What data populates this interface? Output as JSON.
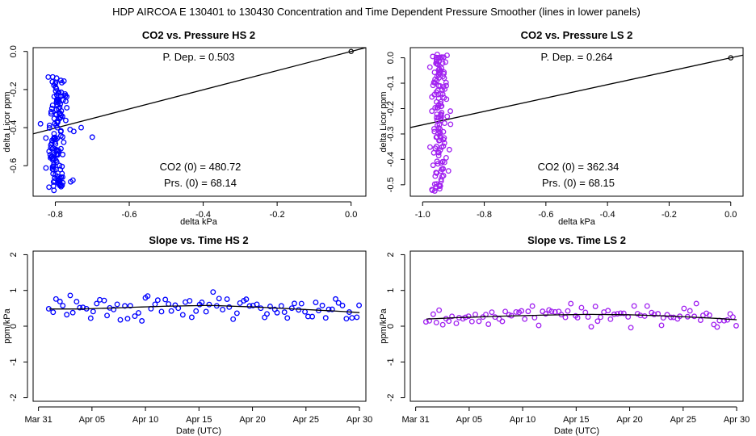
{
  "page_title": "HDP    AIRCOA E    130401 to 130430    Concentration and Time Dependent Pressure Smoother (lines in lower panels)",
  "colors": {
    "hs": "#0000ff",
    "ls": "#a020f0",
    "line": "#000000"
  },
  "chart_data": [
    {
      "id": "p1",
      "type": "scatter",
      "title": "CO2 vs. Pressure HS 2",
      "xlabel": "delta kPa",
      "ylabel": "delta Licor ppm",
      "xlim": [
        -0.86,
        0.04
      ],
      "ylim": [
        -0.76,
        0.02
      ],
      "xticks": [
        -0.8,
        -0.6,
        -0.4,
        -0.2,
        0.0
      ],
      "xtick_labels": [
        "-0.8",
        "-0.6",
        "-0.4",
        "-0.2",
        "0.0"
      ],
      "yticks": [
        0.0,
        -0.2,
        -0.4,
        -0.6
      ],
      "ytick_labels": [
        "0.0",
        "-0.2",
        "-0.4",
        "-0.6"
      ],
      "pdep_label": "P. Dep. =  0.503",
      "co2_label": "CO2 (0) =  480.72",
      "prs_label": "Prs. (0) =  68.14",
      "fit": {
        "slope": 0.503,
        "intercept": 0.0
      },
      "ref_point": [
        0.0,
        0.0
      ],
      "color": "#0000ff",
      "cluster": {
        "x_center": -0.795,
        "x_spread": 0.012,
        "y_min": -0.73,
        "y_max": -0.13,
        "n": 140,
        "seed": 11
      },
      "outliers": [
        [
          -0.7,
          -0.45
        ],
        [
          -0.73,
          -0.4
        ],
        [
          -0.76,
          -0.41
        ],
        [
          -0.75,
          -0.42
        ],
        [
          -0.84,
          -0.38
        ]
      ]
    },
    {
      "id": "p2",
      "type": "scatter",
      "title": "CO2 vs. Pressure LS 2",
      "xlabel": "delta kPa",
      "ylabel": "delta Licor ppm",
      "xlim": [
        -1.04,
        0.04
      ],
      "ylim": [
        -0.545,
        0.04
      ],
      "xticks": [
        -1.0,
        -0.8,
        -0.6,
        -0.4,
        -0.2,
        0.0
      ],
      "xtick_labels": [
        "-1.0",
        "-0.8",
        "-0.6",
        "-0.4",
        "-0.2",
        "0.0"
      ],
      "yticks": [
        0.0,
        -0.1,
        -0.2,
        -0.3,
        -0.4,
        -0.5
      ],
      "ytick_labels": [
        "0.0",
        "-0.1",
        "-0.2",
        "-0.3",
        "-0.4",
        "-0.5"
      ],
      "pdep_label": "P. Dep. =  0.264",
      "co2_label": "CO2 (0) =  362.34",
      "prs_label": "Prs. (0) =  68.15",
      "fit": {
        "slope": 0.264,
        "intercept": 0.0
      },
      "ref_point": [
        0.0,
        0.0
      ],
      "color": "#a020f0",
      "cluster": {
        "x_center": -0.945,
        "x_spread": 0.012,
        "y_min": -0.53,
        "y_max": 0.02,
        "n": 140,
        "seed": 29
      },
      "outliers": [
        [
          -0.91,
          -0.21
        ],
        [
          -0.97,
          -0.21
        ],
        [
          -0.93,
          -0.08
        ]
      ]
    },
    {
      "id": "p3",
      "type": "scatter",
      "title": "Slope vs. Time HS 2",
      "xlabel": "Date (UTC)",
      "ylabel": "ppm/kPa",
      "xlim": [
        -0.5,
        30.6
      ],
      "ylim": [
        -2.1,
        2.1
      ],
      "xticks": [
        0,
        5,
        10,
        15,
        20,
        25,
        30
      ],
      "xtick_labels": [
        "Mar 31",
        "Apr 05",
        "Apr 10",
        "Apr 15",
        "Apr 20",
        "Apr 25",
        "Apr 30"
      ],
      "yticks": [
        -2,
        -1,
        0,
        1,
        2
      ],
      "ytick_labels": [
        "-2",
        "-1",
        "0",
        "1",
        "2"
      ],
      "color": "#0000ff",
      "smooth_x": [
        1,
        4,
        8,
        12,
        16,
        20,
        24,
        28,
        30
      ],
      "smooth_y": [
        0.48,
        0.48,
        0.52,
        0.56,
        0.58,
        0.54,
        0.48,
        0.42,
        0.38
      ],
      "series": {
        "x_start": 1,
        "x_end": 30,
        "n": 92,
        "seed": 5,
        "noise": 0.17
      }
    },
    {
      "id": "p4",
      "type": "scatter",
      "title": "Slope vs. Time LS 2",
      "xlabel": "Date (UTC)",
      "ylabel": "ppm/kPa",
      "xlim": [
        -0.5,
        30.6
      ],
      "ylim": [
        -2.1,
        2.1
      ],
      "xticks": [
        0,
        5,
        10,
        15,
        20,
        25,
        30
      ],
      "xtick_labels": [
        "Mar 31",
        "Apr 05",
        "Apr 10",
        "Apr 15",
        "Apr 20",
        "Apr 25",
        "Apr 30"
      ],
      "yticks": [
        -2,
        -1,
        0,
        1,
        2
      ],
      "ytick_labels": [
        "-2",
        "-1",
        "0",
        "1",
        "2"
      ],
      "color": "#a020f0",
      "smooth_x": [
        1,
        4,
        8,
        12,
        16,
        20,
        24,
        28,
        30
      ],
      "smooth_y": [
        0.2,
        0.24,
        0.28,
        0.31,
        0.33,
        0.32,
        0.28,
        0.22,
        0.18
      ],
      "series": {
        "x_start": 1,
        "x_end": 30,
        "n": 95,
        "seed": 17,
        "noise": 0.13
      }
    }
  ]
}
